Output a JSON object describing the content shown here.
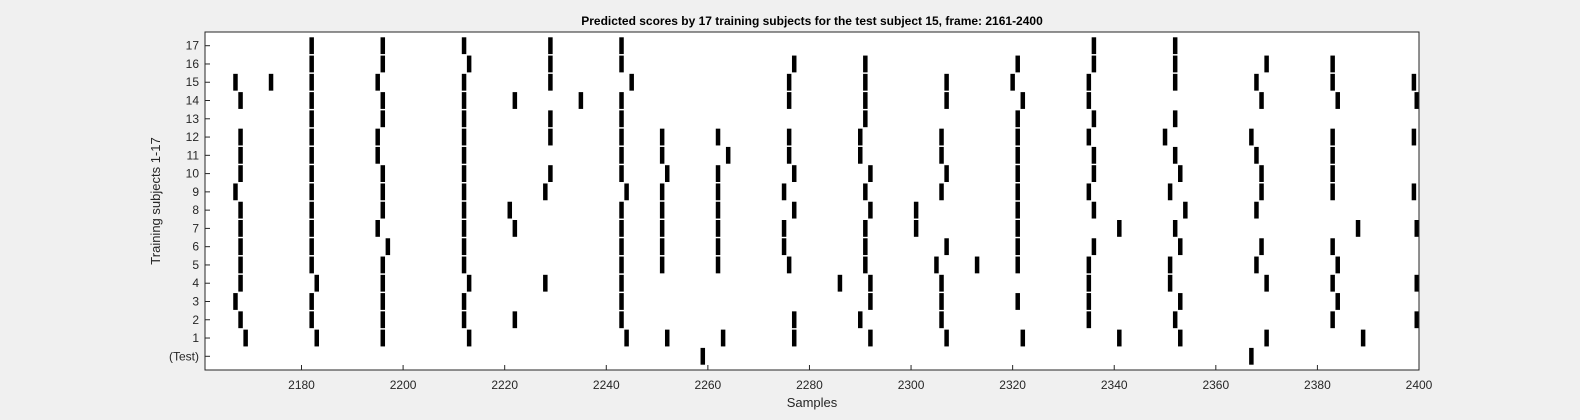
{
  "chart_data": {
    "type": "scatter",
    "marker": "vertical-bar",
    "title": "Predicted scores by 17 training subjects for the test subject 15, frame: 2161-2400",
    "xlabel": "Samples",
    "ylabel": "Training subjects 1-17",
    "xlim": [
      2161,
      2400
    ],
    "xticks": [
      2180,
      2200,
      2220,
      2240,
      2260,
      2280,
      2300,
      2320,
      2340,
      2360,
      2380,
      2400
    ],
    "yticks": [
      "(Test)",
      "1",
      "2",
      "3",
      "4",
      "5",
      "6",
      "7",
      "8",
      "9",
      "10",
      "11",
      "12",
      "13",
      "14",
      "15",
      "16",
      "17"
    ],
    "grid": false,
    "colors": {
      "background": "#f0f0f0",
      "axes": "#ffffff",
      "marker": "#000000",
      "text": "#262626"
    },
    "series": [
      {
        "row": "(Test)",
        "x": [
          2259,
          2367
        ]
      },
      {
        "row": "1",
        "x": [
          2169,
          2183,
          2196,
          2213,
          2244,
          2252,
          2263,
          2277,
          2292,
          2307,
          2322,
          2341,
          2353,
          2370,
          2389
        ]
      },
      {
        "row": "2",
        "x": [
          2168,
          2182,
          2196,
          2212,
          2222,
          2243,
          2277,
          2290,
          2306,
          2335,
          2352,
          2383,
          2400
        ]
      },
      {
        "row": "3",
        "x": [
          2167,
          2182,
          2196,
          2212,
          2243,
          2292,
          2306,
          2321,
          2335,
          2353,
          2384
        ]
      },
      {
        "row": "4",
        "x": [
          2168,
          2183,
          2196,
          2213,
          2228,
          2243,
          2286,
          2292,
          2306,
          2335,
          2351,
          2370,
          2383,
          2400
        ]
      },
      {
        "row": "5",
        "x": [
          2168,
          2182,
          2196,
          2212,
          2243,
          2251,
          2262,
          2276,
          2291,
          2305,
          2313,
          2321,
          2335,
          2351,
          2368,
          2384
        ]
      },
      {
        "row": "6",
        "x": [
          2168,
          2182,
          2197,
          2212,
          2243,
          2251,
          2262,
          2275,
          2291,
          2307,
          2321,
          2336,
          2353,
          2369,
          2383
        ]
      },
      {
        "row": "7",
        "x": [
          2168,
          2182,
          2195,
          2212,
          2222,
          2243,
          2251,
          2262,
          2275,
          2291,
          2301,
          2321,
          2341,
          2352,
          2388,
          2400
        ]
      },
      {
        "row": "8",
        "x": [
          2168,
          2182,
          2196,
          2212,
          2221,
          2243,
          2251,
          2262,
          2277,
          2292,
          2301,
          2321,
          2336,
          2354,
          2368
        ]
      },
      {
        "row": "9",
        "x": [
          2167,
          2182,
          2196,
          2212,
          2228,
          2244,
          2251,
          2262,
          2275,
          2291,
          2306,
          2321,
          2335,
          2351,
          2369,
          2383,
          2399
        ]
      },
      {
        "row": "10",
        "x": [
          2168,
          2182,
          2196,
          2212,
          2229,
          2243,
          2252,
          2262,
          2277,
          2292,
          2307,
          2321,
          2336,
          2353,
          2369,
          2383
        ]
      },
      {
        "row": "11",
        "x": [
          2168,
          2182,
          2195,
          2212,
          2243,
          2251,
          2264,
          2276,
          2290,
          2306,
          2321,
          2336,
          2352,
          2368,
          2383
        ]
      },
      {
        "row": "12",
        "x": [
          2168,
          2182,
          2195,
          2212,
          2229,
          2243,
          2251,
          2262,
          2276,
          2290,
          2306,
          2321,
          2335,
          2350,
          2367,
          2383,
          2399
        ]
      },
      {
        "row": "13",
        "x": [
          2182,
          2196,
          2212,
          2229,
          2243,
          2291,
          2321,
          2336,
          2352
        ]
      },
      {
        "row": "14",
        "x": [
          2168,
          2182,
          2196,
          2212,
          2222,
          2235,
          2243,
          2276,
          2291,
          2307,
          2322,
          2335,
          2369,
          2384,
          2400
        ]
      },
      {
        "row": "15",
        "x": [
          2167,
          2174,
          2182,
          2195,
          2212,
          2229,
          2245,
          2276,
          2291,
          2307,
          2320,
          2335,
          2352,
          2368,
          2383,
          2399
        ]
      },
      {
        "row": "16",
        "x": [
          2182,
          2196,
          2213,
          2229,
          2243,
          2277,
          2291,
          2321,
          2336,
          2352,
          2370,
          2383
        ]
      },
      {
        "row": "17",
        "x": [
          2182,
          2196,
          2212,
          2229,
          2243,
          2336,
          2352
        ]
      }
    ]
  }
}
